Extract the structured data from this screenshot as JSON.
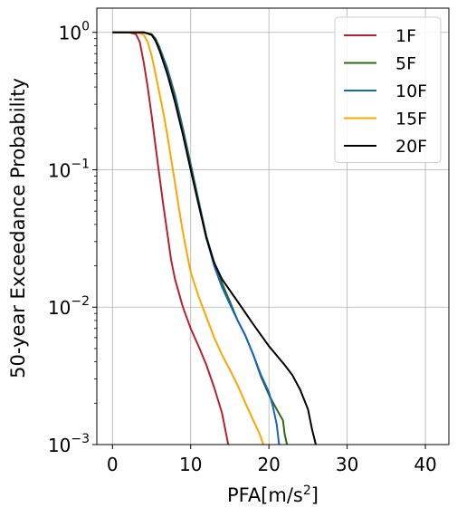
{
  "chart_data": {
    "type": "line",
    "xlabel_main": "PFA[m/s",
    "xlabel_sup": "2",
    "xlabel_end": "]",
    "ylabel": "50-year Exceedance Probability",
    "y_scale": "log",
    "xlim": [
      -2,
      43
    ],
    "ylim": [
      0.001,
      1.5
    ],
    "x_ticks": [
      0,
      10,
      20,
      30,
      40
    ],
    "x_tick_labels": [
      "0",
      "10",
      "20",
      "30",
      "40"
    ],
    "y_ticks": [
      1,
      0.1,
      0.01,
      0.001
    ],
    "y_tick_labels": [
      {
        "base": "10",
        "exp": "0"
      },
      {
        "base": "10",
        "exp": "−1"
      },
      {
        "base": "10",
        "exp": "−2"
      },
      {
        "base": "10",
        "exp": "−3"
      }
    ],
    "grid": true,
    "legend_position": "top-right",
    "series": [
      {
        "name": "1F",
        "color": "#b5222e",
        "points": [
          [
            0,
            1
          ],
          [
            2,
            1
          ],
          [
            3,
            0.97
          ],
          [
            3.5,
            0.85
          ],
          [
            4,
            0.6
          ],
          [
            4.5,
            0.4
          ],
          [
            5,
            0.25
          ],
          [
            5.5,
            0.15
          ],
          [
            6,
            0.09
          ],
          [
            6.5,
            0.055
          ],
          [
            7,
            0.035
          ],
          [
            7.5,
            0.022
          ],
          [
            8,
            0.016
          ],
          [
            9,
            0.01
          ],
          [
            10,
            0.007
          ],
          [
            11,
            0.0052
          ],
          [
            12,
            0.0038
          ],
          [
            13,
            0.0026
          ],
          [
            14,
            0.0017
          ],
          [
            14.8,
            0.001
          ]
        ]
      },
      {
        "name": "5F",
        "color": "#2e6b0f",
        "points": [
          [
            0,
            1
          ],
          [
            4,
            1
          ],
          [
            5,
            0.97
          ],
          [
            5.5,
            0.9
          ],
          [
            6,
            0.78
          ],
          [
            7,
            0.55
          ],
          [
            8,
            0.35
          ],
          [
            9,
            0.2
          ],
          [
            10,
            0.11
          ],
          [
            11,
            0.06
          ],
          [
            12,
            0.033
          ],
          [
            13,
            0.021
          ],
          [
            14,
            0.015
          ],
          [
            15,
            0.011
          ],
          [
            16,
            0.008
          ],
          [
            17,
            0.0062
          ],
          [
            18,
            0.0045
          ],
          [
            19,
            0.0031
          ],
          [
            20,
            0.0023
          ],
          [
            21,
            0.0018
          ],
          [
            21.8,
            0.0015
          ],
          [
            22,
            0.0012
          ],
          [
            22.3,
            0.001
          ]
        ]
      },
      {
        "name": "10F",
        "color": "#1565c0",
        "points": [
          [
            0,
            1
          ],
          [
            4,
            1
          ],
          [
            5,
            0.96
          ],
          [
            5.5,
            0.88
          ],
          [
            6,
            0.76
          ],
          [
            7,
            0.53
          ],
          [
            8,
            0.33
          ],
          [
            9,
            0.19
          ],
          [
            10,
            0.105
          ],
          [
            11,
            0.058
          ],
          [
            12,
            0.032
          ],
          [
            13,
            0.02
          ],
          [
            14,
            0.014
          ],
          [
            15,
            0.0105
          ],
          [
            16,
            0.008
          ],
          [
            17,
            0.0062
          ],
          [
            18,
            0.0045
          ],
          [
            19,
            0.0032
          ],
          [
            20,
            0.0024
          ],
          [
            20.5,
            0.0019
          ],
          [
            21,
            0.0014
          ],
          [
            21.3,
            0.001
          ]
        ]
      },
      {
        "name": "15F",
        "color": "#ffa500",
        "points": [
          [
            0,
            1
          ],
          [
            3,
            1
          ],
          [
            4,
            0.96
          ],
          [
            4.5,
            0.85
          ],
          [
            5,
            0.68
          ],
          [
            5.5,
            0.5
          ],
          [
            6,
            0.36
          ],
          [
            6.5,
            0.26
          ],
          [
            7,
            0.18
          ],
          [
            7.5,
            0.12
          ],
          [
            8,
            0.08
          ],
          [
            8.5,
            0.052
          ],
          [
            9,
            0.035
          ],
          [
            9.5,
            0.025
          ],
          [
            10,
            0.018
          ],
          [
            11,
            0.012
          ],
          [
            12,
            0.0085
          ],
          [
            13,
            0.006
          ],
          [
            14,
            0.0045
          ],
          [
            15,
            0.0035
          ],
          [
            16,
            0.0027
          ],
          [
            17,
            0.002
          ],
          [
            18,
            0.0015
          ],
          [
            18.8,
            0.0012
          ],
          [
            19.3,
            0.001
          ]
        ]
      },
      {
        "name": "20F",
        "color": "#000000",
        "points": [
          [
            0,
            1
          ],
          [
            4,
            1
          ],
          [
            5,
            0.96
          ],
          [
            5.5,
            0.87
          ],
          [
            6,
            0.74
          ],
          [
            7,
            0.5
          ],
          [
            8,
            0.31
          ],
          [
            9,
            0.18
          ],
          [
            10,
            0.1
          ],
          [
            11,
            0.056
          ],
          [
            12,
            0.032
          ],
          [
            13,
            0.021
          ],
          [
            14,
            0.016
          ],
          [
            16,
            0.011
          ],
          [
            18,
            0.0075
          ],
          [
            20,
            0.0052
          ],
          [
            22,
            0.0038
          ],
          [
            23,
            0.0032
          ],
          [
            24,
            0.0025
          ],
          [
            25,
            0.0018
          ],
          [
            25.5,
            0.0013
          ],
          [
            26,
            0.001
          ]
        ]
      }
    ]
  }
}
